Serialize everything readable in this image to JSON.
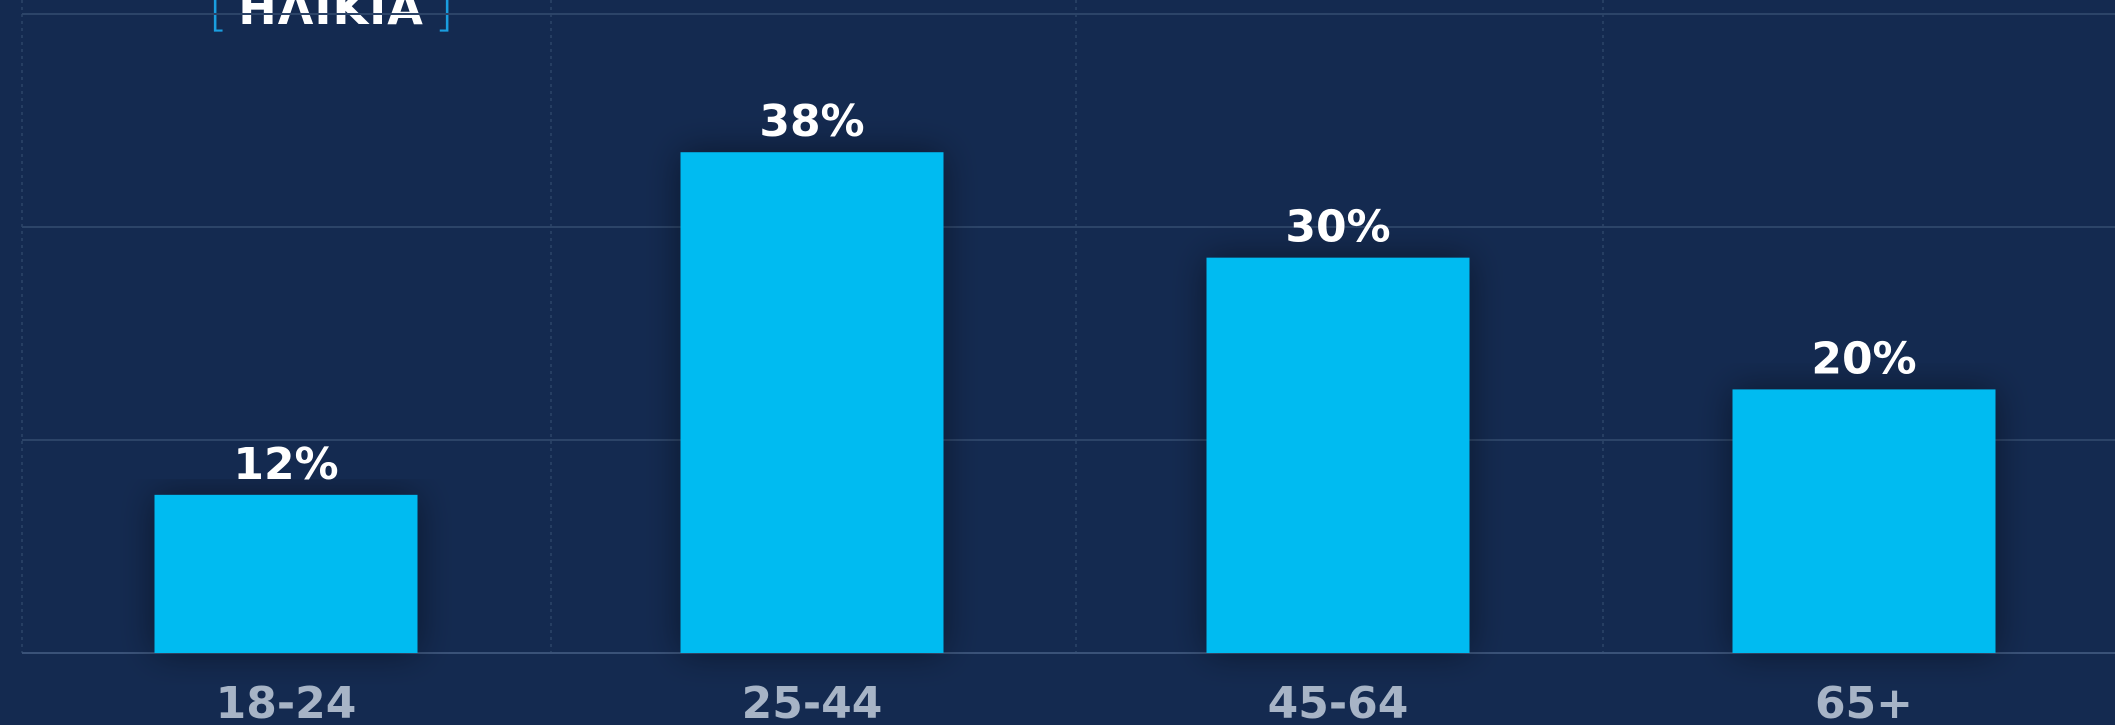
{
  "chart_data": {
    "type": "bar",
    "title": "ΗΛΙΚΙΑ",
    "categories": [
      "18-24",
      "25-44",
      "45-64",
      "65+"
    ],
    "values": [
      12,
      38,
      30,
      20
    ],
    "value_labels": [
      "12%",
      "38%",
      "30%",
      "20%"
    ],
    "ylim": [
      0,
      45
    ],
    "grid": true,
    "legend": "none"
  },
  "colors": {
    "background": "#142a50",
    "bar": "#05bbf1",
    "bracket_accent": "#1a9ee0",
    "gridline": "#2c4468",
    "value_label": "#ffffff",
    "category_label": "#a7b4c6"
  }
}
